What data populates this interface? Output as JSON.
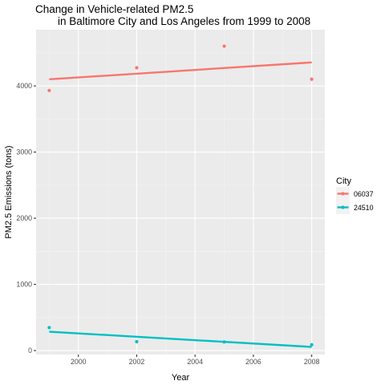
{
  "chart_data": {
    "type": "scatter",
    "title_line1": "Change in Vehicle-related PM2.5",
    "title_line2": "in Baltimore City and Los Angeles from 1999 to 2008",
    "xlabel": "Year",
    "ylabel": "PM2.5 Emissions (tons)",
    "xlim": [
      1998.55,
      2008.45
    ],
    "ylim": [
      -60,
      4850
    ],
    "x_ticks": [
      2000,
      2002,
      2004,
      2006,
      2008
    ],
    "x_tick_labels": [
      "2000",
      "2002",
      "2004",
      "2006",
      "2008"
    ],
    "x_minor_ticks": [
      1999,
      2001,
      2003,
      2005,
      2007
    ],
    "y_ticks": [
      0,
      1000,
      2000,
      3000,
      4000
    ],
    "y_tick_labels": [
      "0",
      "1000",
      "2000",
      "3000",
      "4000"
    ],
    "y_minor_ticks": [
      500,
      1500,
      2500,
      3500,
      4500
    ],
    "grid": true,
    "legend": {
      "title": "City",
      "position": "right"
    },
    "series": [
      {
        "name": "06037",
        "color": "#F8766D",
        "x": [
          1999,
          2002,
          2005,
          2008
        ],
        "y": [
          3931,
          4274,
          4601,
          4101
        ],
        "trend": {
          "x": [
            1999,
            2008
          ],
          "y": [
            4100,
            4355
          ]
        }
      },
      {
        "name": "24510",
        "color": "#00BFC4",
        "x": [
          1999,
          2002,
          2005,
          2008
        ],
        "y": [
          347,
          134,
          130,
          88
        ],
        "trend": {
          "x": [
            1999,
            2008
          ],
          "y": [
            285,
            55
          ]
        }
      }
    ]
  }
}
